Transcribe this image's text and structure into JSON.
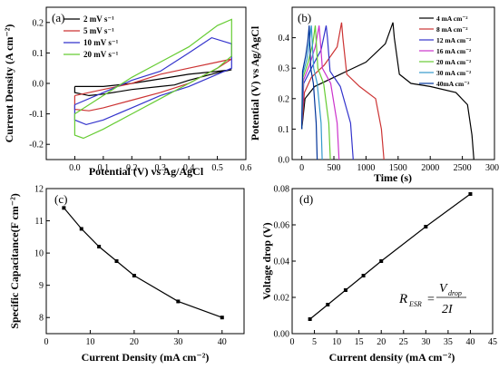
{
  "chart_data": [
    {
      "panel": "(a)",
      "type": "line",
      "xlabel": "Potential (V) vs Ag/AgCl",
      "ylabel": "Current Density (A cm⁻²)",
      "xlim": [
        -0.1,
        0.6
      ],
      "ylim": [
        -0.25,
        0.25
      ],
      "xticks": [
        0.0,
        0.1,
        0.2,
        0.3,
        0.4,
        0.5,
        0.6
      ],
      "yticks": [
        -0.2,
        -0.1,
        0.0,
        0.1,
        0.2
      ],
      "legend_position": "top-left",
      "series": [
        {
          "name": "2  mV s⁻¹",
          "color": "#000000",
          "x": [
            0.0,
            0.1,
            0.2,
            0.3,
            0.4,
            0.5,
            0.55,
            0.55,
            0.5,
            0.4,
            0.35,
            0.3,
            0.2,
            0.1,
            0.05,
            0.0,
            0.0
          ],
          "y": [
            -0.01,
            -0.01,
            0.0,
            0.015,
            0.03,
            0.04,
            0.045,
            0.045,
            0.035,
            0.01,
            -0.005,
            -0.01,
            -0.02,
            -0.035,
            -0.04,
            -0.03,
            -0.01
          ]
        },
        {
          "name": "5  mV s⁻¹",
          "color": "#cc3333",
          "x": [
            0.0,
            0.1,
            0.2,
            0.3,
            0.4,
            0.5,
            0.55,
            0.55,
            0.5,
            0.4,
            0.3,
            0.2,
            0.1,
            0.05,
            0.0,
            0.0
          ],
          "y": [
            -0.04,
            -0.02,
            0.0,
            0.03,
            0.05,
            0.07,
            0.08,
            0.08,
            0.05,
            0.0,
            -0.03,
            -0.055,
            -0.08,
            -0.09,
            -0.085,
            -0.04
          ]
        },
        {
          "name": "10 mV s⁻¹",
          "color": "#3333cc",
          "x": [
            0.0,
            0.1,
            0.2,
            0.3,
            0.4,
            0.48,
            0.55,
            0.55,
            0.5,
            0.4,
            0.3,
            0.2,
            0.1,
            0.04,
            0.0,
            0.0
          ],
          "y": [
            -0.07,
            -0.03,
            0.01,
            0.04,
            0.1,
            0.15,
            0.13,
            0.05,
            0.03,
            -0.01,
            -0.04,
            -0.08,
            -0.12,
            -0.135,
            -0.12,
            -0.07
          ]
        },
        {
          "name": "20 mV s⁻¹",
          "color": "#66cc33",
          "x": [
            0.0,
            0.1,
            0.2,
            0.3,
            0.4,
            0.5,
            0.55,
            0.55,
            0.5,
            0.4,
            0.3,
            0.2,
            0.1,
            0.03,
            0.0,
            0.0
          ],
          "y": [
            -0.1,
            -0.04,
            0.02,
            0.07,
            0.12,
            0.19,
            0.21,
            0.09,
            0.05,
            0.0,
            -0.05,
            -0.1,
            -0.15,
            -0.18,
            -0.17,
            -0.1
          ]
        }
      ]
    },
    {
      "panel": "(b)",
      "type": "line",
      "xlabel": "Time (s)",
      "ylabel": "Potential (V) vs Ag/AgCl",
      "xlim": [
        -150,
        3000
      ],
      "ylim": [
        0.0,
        0.5
      ],
      "xticks": [
        0,
        500,
        1000,
        1500,
        2000,
        2500,
        3000
      ],
      "yticks": [
        0.0,
        0.1,
        0.2,
        0.3,
        0.4
      ],
      "legend_position": "top-right",
      "series": [
        {
          "name": "4 mA cm⁻²",
          "color": "#000000",
          "x": [
            0,
            50,
            200,
            600,
            1000,
            1300,
            1420,
            1440,
            1520,
            1700,
            2000,
            2400,
            2580,
            2650,
            2680
          ],
          "y": [
            0.1,
            0.2,
            0.24,
            0.28,
            0.32,
            0.38,
            0.45,
            0.4,
            0.28,
            0.25,
            0.24,
            0.22,
            0.18,
            0.08,
            0.0
          ]
        },
        {
          "name": "8 mA cm⁻²",
          "color": "#cc3333",
          "x": [
            0,
            40,
            150,
            350,
            550,
            620,
            640,
            700,
            900,
            1150,
            1240,
            1280
          ],
          "y": [
            0.1,
            0.22,
            0.27,
            0.31,
            0.37,
            0.45,
            0.4,
            0.28,
            0.24,
            0.2,
            0.1,
            0.0
          ]
        },
        {
          "name": "12 mA cm⁻²",
          "color": "#3333cc",
          "x": [
            0,
            30,
            150,
            300,
            380,
            400,
            440,
            600,
            760,
            800
          ],
          "y": [
            0.1,
            0.25,
            0.3,
            0.36,
            0.44,
            0.4,
            0.29,
            0.24,
            0.12,
            0.0
          ]
        },
        {
          "name": "16 mA cm⁻²",
          "color": "#cc33cc",
          "x": [
            0,
            25,
            120,
            210,
            270,
            285,
            320,
            450,
            550,
            580
          ],
          "y": [
            0.1,
            0.26,
            0.31,
            0.37,
            0.44,
            0.4,
            0.3,
            0.25,
            0.12,
            0.0
          ]
        },
        {
          "name": "20 mA cm⁻²",
          "color": "#66cc33",
          "x": [
            0,
            20,
            100,
            170,
            210,
            222,
            250,
            340,
            420,
            445
          ],
          "y": [
            0.1,
            0.27,
            0.32,
            0.38,
            0.44,
            0.4,
            0.3,
            0.25,
            0.12,
            0.0
          ]
        },
        {
          "name": "30 mA cm⁻²",
          "color": "#3399cc",
          "x": [
            0,
            15,
            80,
            120,
            150,
            160,
            185,
            240,
            300,
            318
          ],
          "y": [
            0.1,
            0.28,
            0.33,
            0.39,
            0.44,
            0.4,
            0.3,
            0.25,
            0.12,
            0.0
          ]
        },
        {
          "name": "40mA cm⁻²",
          "color": "#003399",
          "x": [
            0,
            12,
            60,
            95,
            115,
            122,
            140,
            180,
            225,
            240
          ],
          "y": [
            0.1,
            0.29,
            0.34,
            0.39,
            0.44,
            0.4,
            0.3,
            0.25,
            0.12,
            0.0
          ]
        }
      ]
    },
    {
      "panel": "(c)",
      "type": "line",
      "xlabel": "Current Density (mA cm⁻²)",
      "ylabel": "Specific Capacitance(F cm⁻²)",
      "xlim": [
        0,
        45
      ],
      "ylim": [
        7.5,
        12.0
      ],
      "xticks": [
        0,
        10,
        20,
        30,
        40
      ],
      "yticks": [
        8,
        9,
        10,
        11,
        12
      ],
      "series": [
        {
          "name": "",
          "color": "#000000",
          "x": [
            4,
            8,
            12,
            16,
            20,
            30,
            40
          ],
          "y": [
            11.4,
            10.75,
            10.2,
            9.75,
            9.3,
            8.5,
            8.0
          ]
        }
      ]
    },
    {
      "panel": "(d)",
      "type": "line",
      "xlabel": "Current density (mA cm⁻²)",
      "ylabel": "Voltage drop (V)",
      "xlim": [
        0,
        45
      ],
      "ylim": [
        0.0,
        0.08
      ],
      "xticks": [
        0,
        5,
        10,
        15,
        20,
        25,
        30,
        35,
        40,
        45
      ],
      "yticks": [
        0.0,
        0.02,
        0.04,
        0.06,
        0.08
      ],
      "annotation": "R_ESR = V_drop / 2I",
      "series": [
        {
          "name": "",
          "color": "#000000",
          "x": [
            4,
            8,
            12,
            16,
            20,
            30,
            40
          ],
          "y": [
            0.008,
            0.016,
            0.024,
            0.032,
            0.04,
            0.059,
            0.077
          ]
        }
      ]
    }
  ],
  "ticks_text": {
    "a_x": [
      "0.0",
      "0.1",
      "0.2",
      "0.3",
      "0.4",
      "0.5",
      "0.6"
    ],
    "a_y": [
      "-0.2",
      "-0.1",
      "0.0",
      "0.1",
      "0.2"
    ],
    "b_x": [
      "0",
      "500",
      "1000",
      "1500",
      "2000",
      "2500",
      "3000"
    ],
    "b_y": [
      "0.0",
      "0.1",
      "0.2",
      "0.3",
      "0.4"
    ],
    "c_x": [
      "0",
      "10",
      "20",
      "30",
      "40"
    ],
    "c_y": [
      "8",
      "9",
      "10",
      "11",
      "12"
    ],
    "d_x": [
      "0",
      "5",
      "10",
      "15",
      "20",
      "25",
      "30",
      "35",
      "40",
      "45"
    ],
    "d_y": [
      "0.00",
      "0.02",
      "0.04",
      "0.06",
      "0.08"
    ]
  },
  "annotation_d": {
    "r": "R",
    "r_sub": "ESR",
    "eq": "=",
    "num": "V",
    "num_sub": "drop",
    "den": "2I"
  }
}
